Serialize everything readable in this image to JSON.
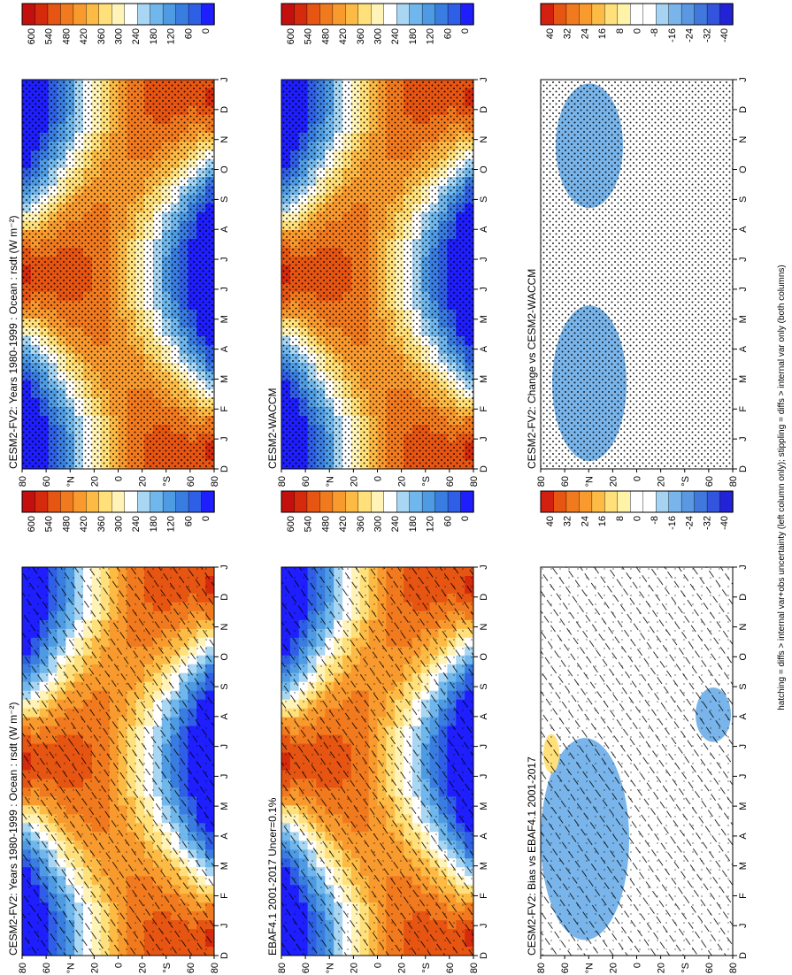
{
  "footnote": "hatching = diffs > internal var+obs uncertainty (left column only); stippling = diffs > internal var only (both columns)",
  "month_labels": [
    "D",
    "J",
    "F",
    "M",
    "A",
    "M",
    "J",
    "J",
    "A",
    "S",
    "O",
    "N",
    "D",
    "J"
  ],
  "lat_labels": [
    "80",
    "60",
    "°N",
    "20",
    "0",
    "20",
    "°S",
    "60",
    "80"
  ],
  "colors": {
    "field": [
      "#1e1eff",
      "#2f5fe6",
      "#3a7de0",
      "#4f9be3",
      "#6fb7ec",
      "#a8d6f3",
      "#ffffff",
      "#fff3b8",
      "#ffe07a",
      "#fdbb45",
      "#f99a2e",
      "#f27a1e",
      "#e75512",
      "#d62a0d",
      "#c40f0f"
    ],
    "diff": [
      "#2222d6",
      "#3355dd",
      "#4078de",
      "#5a98e2",
      "#79b5ea",
      "#a6d3f2",
      "#ffffff",
      "#ffffff",
      "#fff3a8",
      "#ffe07a",
      "#fdbb45",
      "#f99a2e",
      "#f27a1e",
      "#e75512",
      "#d42010"
    ]
  },
  "panels": [
    {
      "id": "bias-model",
      "title": "CESM2-FV2: Years 1980-1999 : Ocean : rsdt (W m⁻²)",
      "kind": "field",
      "hatch": true,
      "stipple": "sparse",
      "colorbar": [
        "600",
        "540",
        "480",
        "420",
        "360",
        "300",
        "240",
        "180",
        "120",
        "60",
        "0"
      ]
    },
    {
      "id": "bias-obs",
      "title": "EBAF4.1 2001-2017 Uncer=0.1%",
      "kind": "field",
      "hatch": true,
      "stipple": "sparse",
      "colorbar": [
        "600",
        "540",
        "480",
        "420",
        "360",
        "300",
        "240",
        "180",
        "120",
        "60",
        "0"
      ]
    },
    {
      "id": "bias-diff",
      "title": "CESM2-FV2: Bias vs EBAF4.1 2001-2017",
      "kind": "diff-bias",
      "hatch": true,
      "stipple": "sparse",
      "colorbar": [
        "40",
        "32",
        "24",
        "16",
        "8",
        "0",
        "-8",
        "-16",
        "-24",
        "-32",
        "-40"
      ]
    },
    {
      "id": "change-model",
      "title": "CESM2-FV2: Years 1980-1999 : Ocean : rsdt (W m⁻²)",
      "kind": "field",
      "hatch": false,
      "stipple": "dense",
      "colorbar": [
        "600",
        "540",
        "480",
        "420",
        "360",
        "300",
        "240",
        "180",
        "120",
        "60",
        "0"
      ]
    },
    {
      "id": "change-ref",
      "title": "CESM2-WACCM",
      "kind": "field",
      "hatch": false,
      "stipple": "dense",
      "colorbar": [
        "600",
        "540",
        "480",
        "420",
        "360",
        "300",
        "240",
        "180",
        "120",
        "60",
        "0"
      ]
    },
    {
      "id": "change-diff",
      "title": "CESM2-FV2: Change vs CESM2-WACCM",
      "kind": "diff-change",
      "hatch": false,
      "stipple": "dense",
      "colorbar": [
        "40",
        "32",
        "24",
        "16",
        "8",
        "0",
        "-8",
        "-16",
        "-24",
        "-32",
        "-40"
      ]
    }
  ],
  "chart_data": {
    "type": "heatmap",
    "variable": "rsdt",
    "units": "W m⁻²",
    "region": "Ocean",
    "x_axis": "month (Dec to Jan)",
    "y_axis": "latitude (80°N to 80°S)",
    "field_range": [
      0,
      600
    ],
    "diff_range": [
      -40,
      40
    ],
    "panels": [
      {
        "title": "CESM2-FV2: Years 1980-1999 : Ocean : rsdt (W m⁻²)",
        "summary": "seasonal insolation, max ~540 W m⁻² in summer hemisphere poles"
      },
      {
        "title": "EBAF4.1 2001-2017 Uncer=0.1%",
        "summary": "observed insolation, nearly identical pattern"
      },
      {
        "title": "CESM2-FV2: Bias vs EBAF4.1 2001-2017",
        "summary": "small negative biases (~-8 W m⁻²) at 40-80°N near Feb-Apr and 40-80°S near Oct"
      },
      {
        "title": "CESM2-WACCM",
        "summary": "reference model insolation"
      },
      {
        "title": "CESM2-FV2: Change vs CESM2-WACCM",
        "summary": "small negative changes (~-8 W m⁻²) at 20-70°N in Jan-Mar and Oct-Dec"
      }
    ]
  }
}
